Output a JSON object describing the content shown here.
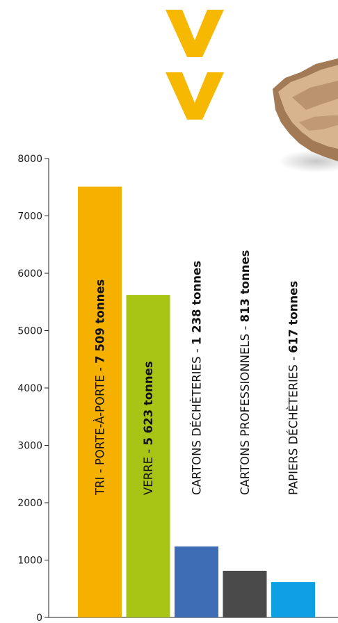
{
  "colors": {
    "arrow": "#F6B800",
    "axis": "#222222",
    "paper_light": "#d8b48e",
    "paper_dark": "#a27a56"
  },
  "icons": [
    "double-chevron-down-icon",
    "torn-cardboard-image"
  ],
  "chart_data": {
    "type": "bar",
    "ylim": [
      0,
      8000
    ],
    "yticks": [
      0,
      1000,
      2000,
      3000,
      4000,
      5000,
      6000,
      7000,
      8000
    ],
    "grid": false,
    "legend": "none",
    "bars": [
      {
        "label_prefix": "TRI - PORTE-À-PORTE - ",
        "label_value": "7 509 tonnes",
        "value": 7509,
        "color": "#F6B100"
      },
      {
        "label_prefix": "VERRE - ",
        "label_value": "5 623 tonnes",
        "value": 5623,
        "color": "#A8C515"
      },
      {
        "label_prefix": "CARTONS DÉCHÈTERIES - ",
        "label_value": "1 238 tonnes",
        "value": 1238,
        "color": "#3F6DB5"
      },
      {
        "label_prefix": "CARTONS PROFESSIONNELS - ",
        "label_value": "813 tonnes",
        "value": 813,
        "color": "#4A4A4A"
      },
      {
        "label_prefix": "PAPIERS DÉCHÈTERIES - ",
        "label_value": "617 tonnes",
        "value": 617,
        "color": "#0EA0E2"
      }
    ]
  }
}
